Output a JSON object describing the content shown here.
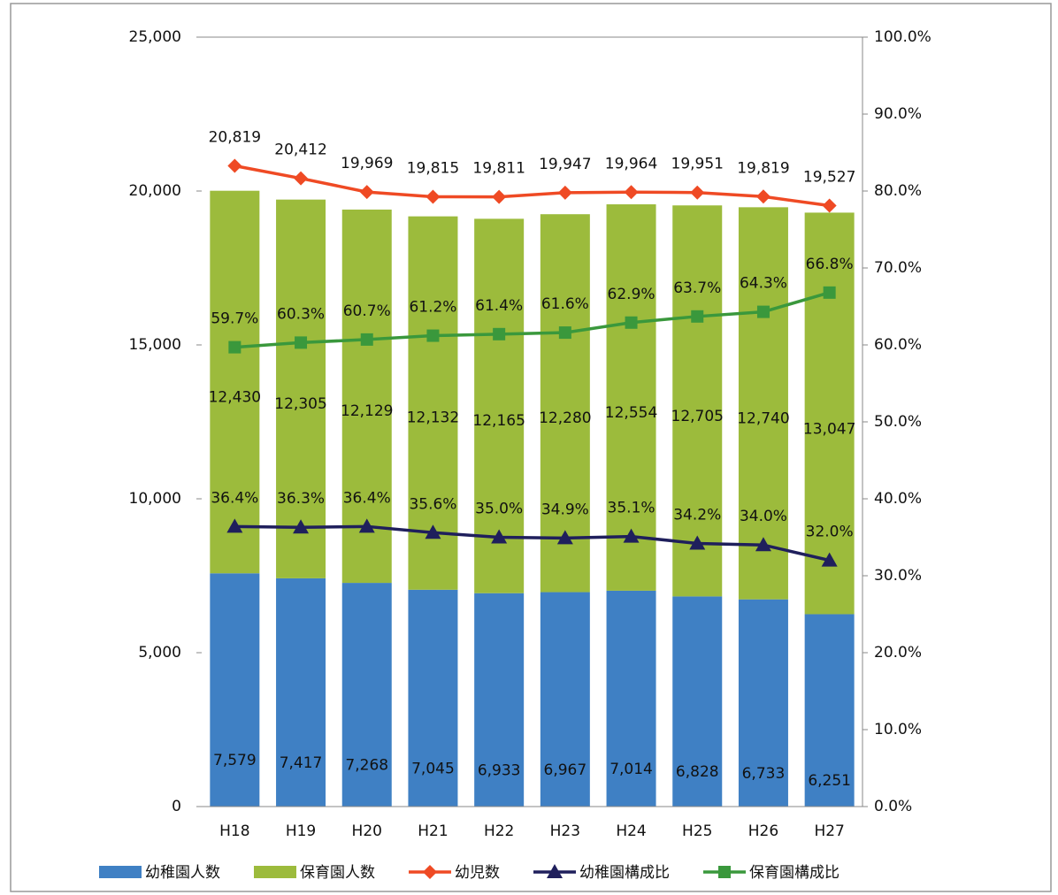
{
  "chart_data": {
    "type": "combo",
    "categories": [
      "H18",
      "H19",
      "H20",
      "H21",
      "H22",
      "H23",
      "H24",
      "H25",
      "H26",
      "H27"
    ],
    "series": [
      {
        "name": "幼稚園人数",
        "type": "bar",
        "color": "#3f80c4",
        "values": [
          7579,
          7417,
          7268,
          7045,
          6933,
          6967,
          7014,
          6828,
          6733,
          6251
        ],
        "value_labels": [
          "7,579",
          "7,417",
          "7,268",
          "7,045",
          "6,933",
          "6,967",
          "7,014",
          "6,828",
          "6,733",
          "6,251"
        ]
      },
      {
        "name": "保育園人数",
        "type": "bar",
        "color": "#9cbb3c",
        "values": [
          12430,
          12305,
          12129,
          12132,
          12165,
          12280,
          12554,
          12705,
          12740,
          13047
        ],
        "value_labels": [
          "12,430",
          "12,305",
          "12,129",
          "12,132",
          "12,165",
          "12,280",
          "12,554",
          "12,705",
          "12,740",
          "13,047"
        ]
      },
      {
        "name": "幼児数",
        "type": "line",
        "marker": "diamond",
        "color": "#ef4a24",
        "values": [
          20819,
          20412,
          19969,
          19815,
          19811,
          19947,
          19964,
          19951,
          19819,
          19527
        ],
        "value_labels": [
          "20,819",
          "20,412",
          "19,969",
          "19,815",
          "19,811",
          "19,947",
          "19,964",
          "19,951",
          "19,819",
          "19,527"
        ]
      },
      {
        "name": "幼稚園構成比",
        "type": "line",
        "marker": "triangle",
        "axis": "y2",
        "color": "#1f1f5c",
        "values": [
          36.4,
          36.3,
          36.4,
          35.6,
          35.0,
          34.9,
          35.1,
          34.2,
          34.0,
          32.0
        ],
        "value_labels": [
          "36.4%",
          "36.3%",
          "36.4%",
          "35.6%",
          "35.0%",
          "34.9%",
          "35.1%",
          "34.2%",
          "34.0%",
          "32.0%"
        ]
      },
      {
        "name": "保育園構成比",
        "type": "line",
        "marker": "square",
        "axis": "y2",
        "color": "#3a983c",
        "values": [
          59.7,
          60.3,
          60.7,
          61.2,
          61.4,
          61.6,
          62.9,
          63.7,
          64.3,
          66.8
        ],
        "value_labels": [
          "59.7%",
          "60.3%",
          "60.7%",
          "61.2%",
          "61.4%",
          "61.6%",
          "62.9%",
          "63.7%",
          "64.3%",
          "66.8%"
        ]
      }
    ],
    "ylim": [
      0,
      25000
    ],
    "yticks": [
      0,
      {
        "value": 5000,
        "label": "5,000"
      },
      {
        "value": 10000,
        "label": "10,000"
      },
      {
        "value": 15000,
        "label": "15,000"
      },
      {
        "value": 20000,
        "label": "20,000"
      },
      {
        "value": 25000,
        "label": "25,000"
      }
    ],
    "y2lim": [
      0,
      100
    ],
    "y2ticks": [
      {
        "value": 0,
        "label": "0.0%"
      },
      {
        "value": 10,
        "label": "10.0%"
      },
      {
        "value": 20,
        "label": "20.0%"
      },
      {
        "value": 30,
        "label": "30.0%"
      },
      {
        "value": 40,
        "label": "40.0%"
      },
      {
        "value": 50,
        "label": "50.0%"
      },
      {
        "value": 60,
        "label": "60.0%"
      },
      {
        "value": 70,
        "label": "70.0%"
      },
      {
        "value": 80,
        "label": "80.0%"
      },
      {
        "value": 90,
        "label": "90.0%"
      },
      {
        "value": 100,
        "label": "100.0%"
      }
    ],
    "grid": false,
    "legend": "bottom"
  }
}
